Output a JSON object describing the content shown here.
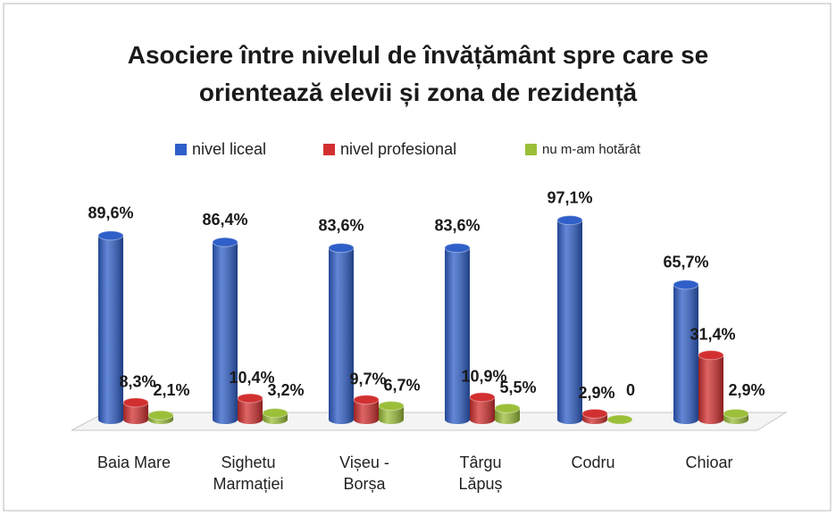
{
  "chart_data": {
    "type": "bar",
    "title": "Asociere între nivelul de învățământ spre care se orientează elevii și zona de rezidență",
    "categories": [
      "Baia Mare",
      "Sighetu Marmației",
      "Vișeu - Borșa",
      "Târgu Lăpuș",
      "Codru",
      "Chioar"
    ],
    "series": [
      {
        "name": "nivel liceal",
        "color": "#2f5fc8",
        "values": [
          89.6,
          86.4,
          83.6,
          83.6,
          97.1,
          65.7
        ],
        "value_labels": [
          "89,6%",
          "86,4%",
          "83,6%",
          "83,6%",
          "97,1%",
          "65,7%"
        ]
      },
      {
        "name": "nivel profesional",
        "color": "#d23030",
        "values": [
          8.3,
          10.4,
          9.7,
          10.9,
          2.9,
          31.4
        ],
        "value_labels": [
          "8,3%",
          "10,4%",
          "9,7%",
          "10,9%",
          "2,9%",
          "31,4%"
        ]
      },
      {
        "name": "nu m-am hotărât",
        "color": "#9cbf3a",
        "values": [
          2.1,
          3.2,
          6.7,
          5.5,
          0,
          2.9
        ],
        "value_labels": [
          "2,1%",
          "3,2%",
          "6,7%",
          "5,5%",
          "0",
          "2,9%"
        ]
      }
    ],
    "legend": "top"
  }
}
